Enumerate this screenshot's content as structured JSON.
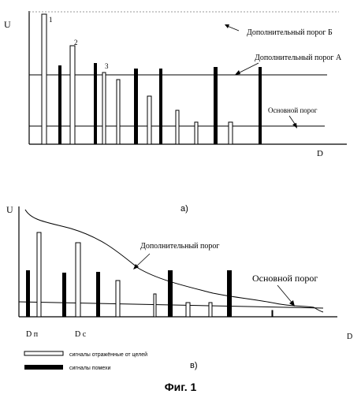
{
  "top_panel": {
    "axis_y_label": "U",
    "axis_x_label": "D",
    "threshold_labels": {
      "additional_b": "Дополнительный порог  Б",
      "additional_a": "Дополнительный порог А",
      "main": "Основной порог"
    },
    "bar_numbers": [
      "1",
      "2",
      "3"
    ],
    "panel_label": "а)"
  },
  "bottom_panel": {
    "axis_y_label": "U",
    "axis_x_label": "D",
    "threshold_labels": {
      "additional": "Дополнительный порог",
      "main": "Основной порог"
    },
    "marker_labels": [
      "D п",
      "D с"
    ],
    "panel_label": "в)"
  },
  "legend": {
    "items": [
      {
        "type": "hollow",
        "label": "сигналы отражённые от целей"
      },
      {
        "type": "filled",
        "label": "сигналы помехи"
      }
    ]
  },
  "caption": "Фиг. 1"
}
